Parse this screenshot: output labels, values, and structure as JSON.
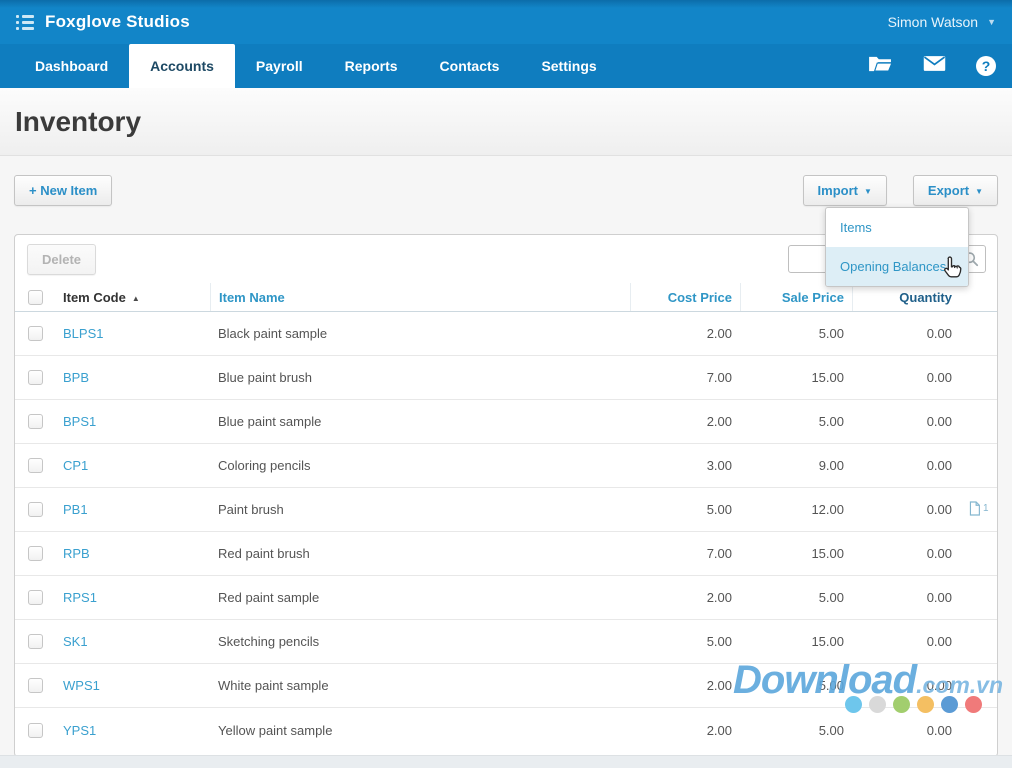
{
  "topbar": {
    "org_name": "Foxglove Studios",
    "user_name": "Simon Watson",
    "user_caret": "▼"
  },
  "nav": {
    "tabs": [
      {
        "label": "Dashboard",
        "active": false
      },
      {
        "label": "Accounts",
        "active": true
      },
      {
        "label": "Payroll",
        "active": false
      },
      {
        "label": "Reports",
        "active": false
      },
      {
        "label": "Contacts",
        "active": false
      },
      {
        "label": "Settings",
        "active": false
      }
    ],
    "help_glyph": "?"
  },
  "page": {
    "title": "Inventory"
  },
  "toolbar": {
    "new_item_label": "+ New Item",
    "import_label": "Import",
    "export_label": "Export",
    "delete_label": "Delete",
    "caret_glyph": "▼"
  },
  "import_menu": {
    "items": [
      {
        "label": "Items",
        "highlighted": false
      },
      {
        "label": "Opening Balances",
        "highlighted": true
      }
    ]
  },
  "search": {
    "value": "",
    "placeholder": ""
  },
  "table": {
    "header": {
      "item_code": "Item Code",
      "item_name": "Item Name",
      "cost_price": "Cost Price",
      "sale_price": "Sale Price",
      "quantity": "Quantity"
    },
    "sort_glyph": "▲",
    "sorted_column": "Item Code",
    "sort_direction": "asc",
    "rows": [
      {
        "code": "BLPS1",
        "name": "Black paint sample",
        "cost": "2.00",
        "sale": "5.00",
        "qty": "0.00",
        "attachments": ""
      },
      {
        "code": "BPB",
        "name": "Blue paint brush",
        "cost": "7.00",
        "sale": "15.00",
        "qty": "0.00",
        "attachments": ""
      },
      {
        "code": "BPS1",
        "name": "Blue paint sample",
        "cost": "2.00",
        "sale": "5.00",
        "qty": "0.00",
        "attachments": ""
      },
      {
        "code": "CP1",
        "name": "Coloring pencils",
        "cost": "3.00",
        "sale": "9.00",
        "qty": "0.00",
        "attachments": ""
      },
      {
        "code": "PB1",
        "name": "Paint brush",
        "cost": "5.00",
        "sale": "12.00",
        "qty": "0.00",
        "attachments": "1"
      },
      {
        "code": "RPB",
        "name": "Red paint brush",
        "cost": "7.00",
        "sale": "15.00",
        "qty": "0.00",
        "attachments": ""
      },
      {
        "code": "RPS1",
        "name": "Red paint sample",
        "cost": "2.00",
        "sale": "5.00",
        "qty": "0.00",
        "attachments": ""
      },
      {
        "code": "SK1",
        "name": "Sketching pencils",
        "cost": "5.00",
        "sale": "15.00",
        "qty": "0.00",
        "attachments": ""
      },
      {
        "code": "WPS1",
        "name": "White paint sample",
        "cost": "2.00",
        "sale": "5.00",
        "qty": "0.00",
        "attachments": ""
      },
      {
        "code": "YPS1",
        "name": "Yellow paint sample",
        "cost": "2.00",
        "sale": "5.00",
        "qty": "0.00",
        "attachments": ""
      }
    ]
  },
  "watermark": {
    "brand": "Download",
    "suffix": ".com.vn",
    "dot_colors": [
      "#6ec6ec",
      "#d9d9d9",
      "#a2ce6e",
      "#f4bf62",
      "#5b9bd5",
      "#f07a7a"
    ]
  },
  "colors": {
    "topbar_blue": "#1285c8",
    "nav_blue": "#0f7dbf",
    "link_blue": "#2f96c6",
    "menu_highlight": "#ddeef6"
  }
}
